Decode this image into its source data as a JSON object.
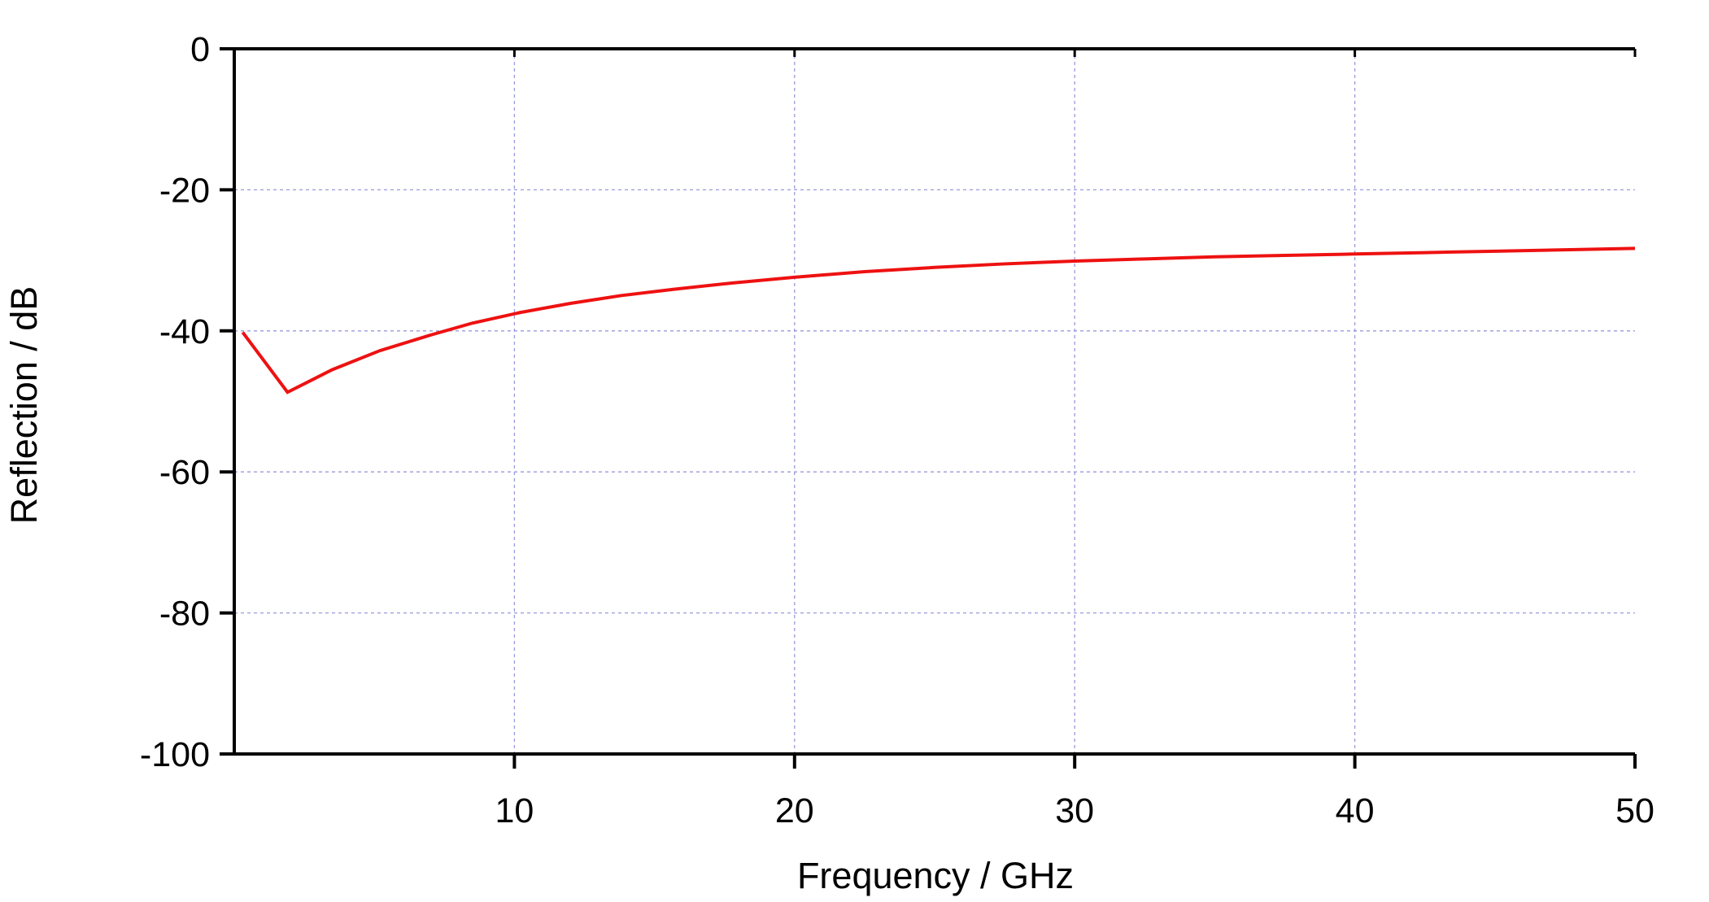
{
  "chart_data": {
    "type": "line",
    "title": "",
    "xlabel": "Frequency / GHz",
    "ylabel": "Reflection / dB",
    "xlim": [
      0,
      50
    ],
    "ylim": [
      -100,
      0
    ],
    "x_ticks": [
      10,
      20,
      30,
      40,
      50
    ],
    "y_ticks": [
      0,
      -20,
      -40,
      -60,
      -80,
      -100
    ],
    "grid": true,
    "legend": "none",
    "series": [
      {
        "color": "#ee1111",
        "x": [
          0.3,
          1.9,
          3.5,
          5.2,
          7,
          8.5,
          10.2,
          12,
          13.8,
          15.7,
          17.8,
          20,
          22.5,
          25,
          27.5,
          30,
          32.5,
          35,
          37.5,
          40,
          42.5,
          45,
          47.5,
          50
        ],
        "y": [
          -40.2,
          -48.7,
          -45.5,
          -42.8,
          -40.6,
          -38.9,
          -37.4,
          -36.1,
          -35.0,
          -34.1,
          -33.2,
          -32.4,
          -31.6,
          -31.0,
          -30.5,
          -30.1,
          -29.8,
          -29.5,
          -29.3,
          -29.1,
          -28.9,
          -28.7,
          -28.5,
          -28.3
        ]
      }
    ]
  }
}
